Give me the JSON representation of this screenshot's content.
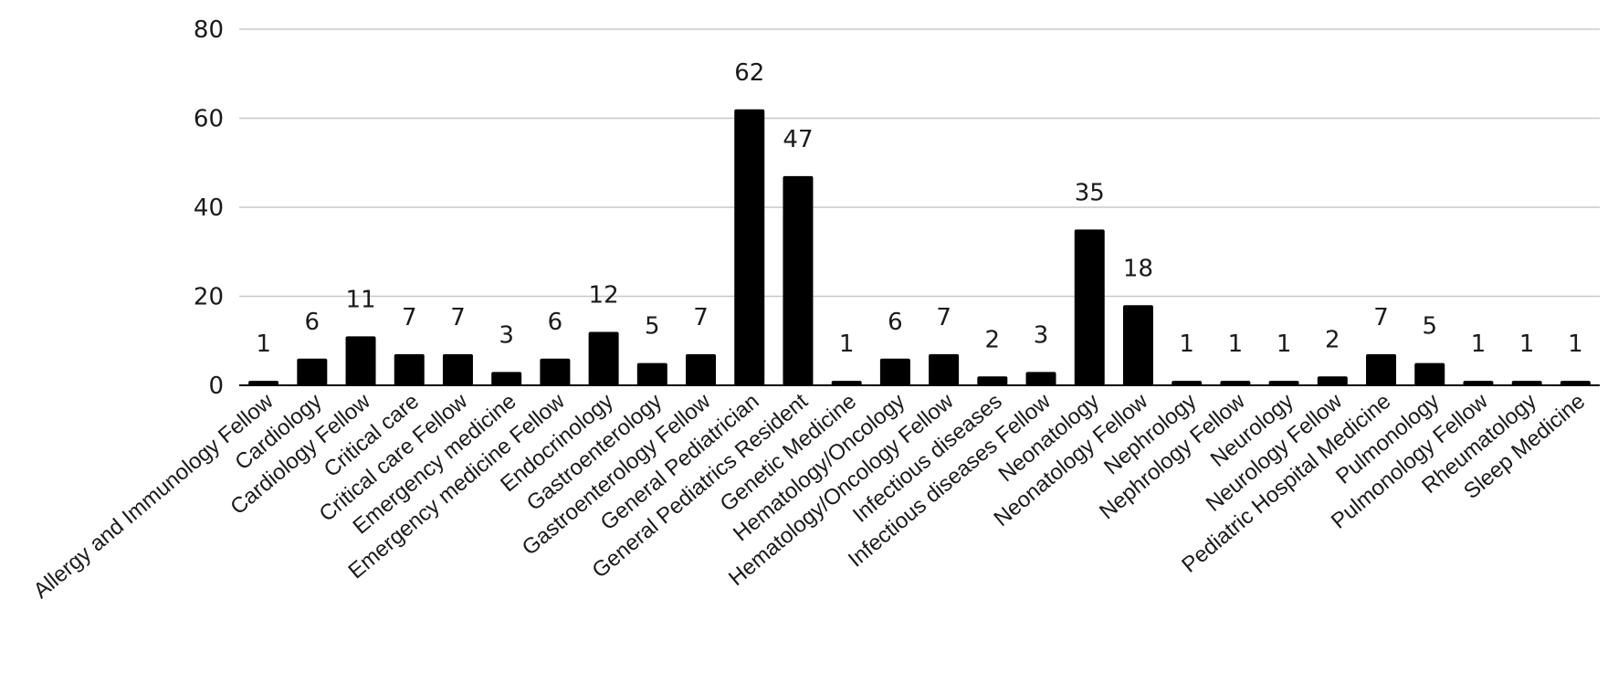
{
  "chart_data": {
    "type": "bar",
    "categories": [
      "Allergy and Immunology Fellow",
      "Cardiology",
      "Cardiology Fellow",
      "Critical care",
      "Critical care Fellow",
      "Emergency medicine",
      "Emergency medicine Fellow",
      "Endocrinology",
      "Gastroenterology",
      "Gastroenterology Fellow",
      "General Pediatrician",
      "General Pediatrics Resident",
      "Genetic Medicine",
      "Hematology/Oncology",
      "Hematology/Oncology Fellow",
      "Infectious diseases",
      "Infectious diseases Fellow",
      "Neonatology",
      "Neonatology Fellow",
      "Nephrology",
      "Nephrology Fellow",
      "Neurology",
      "Neurology Fellow",
      "Pediatric Hospital Medicine",
      "Pulmonology",
      "Pulmonology Fellow",
      "Rheumatology",
      "Sleep Medicine"
    ],
    "values": [
      1,
      6,
      11,
      7,
      7,
      3,
      6,
      12,
      5,
      7,
      62,
      47,
      1,
      6,
      7,
      2,
      3,
      35,
      18,
      1,
      1,
      1,
      2,
      7,
      5,
      1,
      1,
      1
    ],
    "title": "",
    "xlabel": "",
    "ylabel": "",
    "ylim": [
      0,
      80
    ],
    "yticks": [
      0,
      20,
      40,
      60,
      80
    ],
    "grid": true,
    "legend": "none",
    "bar_color": "#000000",
    "grid_color": "#c8c8c8",
    "axis_color": "#000000"
  }
}
